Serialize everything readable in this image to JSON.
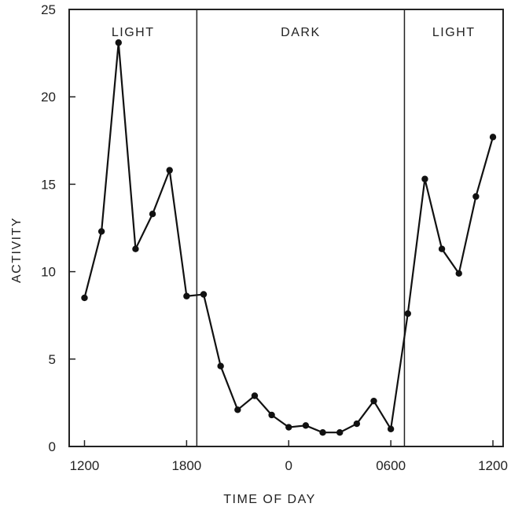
{
  "chart_data": {
    "type": "line",
    "title": "",
    "xlabel": "TIME OF DAY",
    "ylabel": "ACTIVITY",
    "ylim": [
      0,
      25
    ],
    "yticks": [
      0,
      5,
      10,
      15,
      20,
      25
    ],
    "xlim": [
      11.1,
      36.6
    ],
    "xticks": [
      {
        "value": 12,
        "label": "1200"
      },
      {
        "value": 18,
        "label": "1800"
      },
      {
        "value": 24,
        "label": "0"
      },
      {
        "value": 30,
        "label": "0600"
      },
      {
        "value": 36,
        "label": "1200"
      }
    ],
    "grid": false,
    "regions": [
      {
        "label": "LIGHT",
        "from": 11.1,
        "to": 18.6
      },
      {
        "label": "DARK",
        "from": 18.6,
        "to": 30.8
      },
      {
        "label": "LIGHT",
        "from": 30.8,
        "to": 36.6
      }
    ],
    "series": [
      {
        "x": [
          12,
          13,
          14,
          15,
          16,
          17,
          18,
          19,
          20,
          21,
          22,
          23,
          24,
          25,
          26,
          27,
          28,
          29,
          30,
          31,
          32,
          33,
          34,
          35,
          36
        ],
        "y": [
          8.5,
          12.3,
          23.1,
          11.3,
          13.3,
          15.8,
          8.6,
          8.7,
          4.6,
          2.1,
          2.9,
          1.8,
          1.1,
          1.2,
          0.8,
          0.8,
          1.3,
          2.6,
          1.0,
          7.6,
          15.3,
          11.3,
          9.9,
          14.3,
          17.7
        ]
      }
    ]
  }
}
